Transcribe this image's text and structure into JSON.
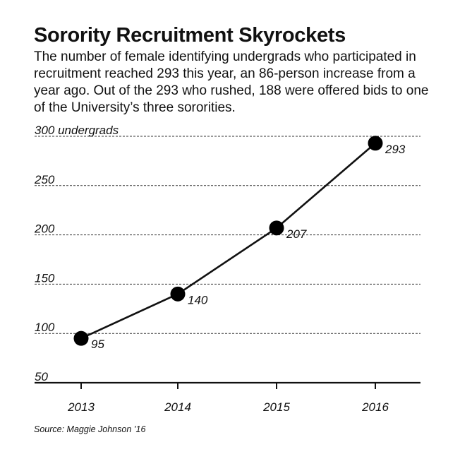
{
  "header": {
    "title": "Sorority Recruitment Skyrockets",
    "subtitle": "The number of female identifying undergrads who participated in recruitment reached 293 this year, an 86-person increase from a year ago. Out of the 293 who rushed, 188 were offered bids to one of the University’s three sororities."
  },
  "chart_data": {
    "type": "line",
    "title": "Sorority Recruitment Skyrockets",
    "x": [
      "2013",
      "2014",
      "2015",
      "2016"
    ],
    "values": [
      95,
      140,
      207,
      293
    ],
    "data_labels": [
      "95",
      "140",
      "207",
      "293"
    ],
    "y_ticks": [
      {
        "value": 300,
        "label": "300 undergrads"
      },
      {
        "value": 250,
        "label": "250"
      },
      {
        "value": 200,
        "label": "200"
      },
      {
        "value": 150,
        "label": "150"
      },
      {
        "value": 100,
        "label": "100"
      },
      {
        "value": 50,
        "label": "50"
      }
    ],
    "ylim": [
      50,
      300
    ],
    "grid": "dashed",
    "xlabel": "",
    "ylabel": "",
    "colors": {
      "line": "#111111",
      "marker": "#000000",
      "grid": "#333333"
    }
  },
  "footer": {
    "source": "Source: Maggie Johnson ’16"
  }
}
